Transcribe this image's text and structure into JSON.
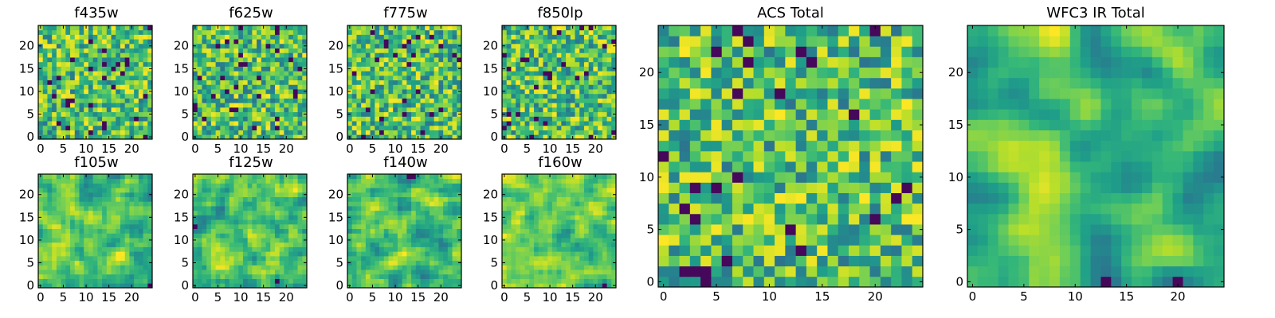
{
  "chart_data": [
    {
      "type": "heatmap",
      "title": "f435w",
      "grid_size": 25,
      "seed": 11,
      "smooth": 0,
      "xticks": [
        0,
        5,
        10,
        15,
        20
      ],
      "yticks": [
        0,
        5,
        10,
        15,
        20
      ],
      "xlim": [
        -0.5,
        24.5
      ],
      "ylim": [
        -0.5,
        24.5
      ],
      "colormap": "viridis"
    },
    {
      "type": "heatmap",
      "title": "f625w",
      "grid_size": 25,
      "seed": 23,
      "smooth": 0,
      "xticks": [
        0,
        5,
        10,
        15,
        20
      ],
      "yticks": [
        0,
        5,
        10,
        15,
        20
      ],
      "xlim": [
        -0.5,
        24.5
      ],
      "ylim": [
        -0.5,
        24.5
      ],
      "colormap": "viridis"
    },
    {
      "type": "heatmap",
      "title": "f775w",
      "grid_size": 25,
      "seed": 37,
      "smooth": 0,
      "xticks": [
        0,
        5,
        10,
        15,
        20
      ],
      "yticks": [
        0,
        5,
        10,
        15,
        20
      ],
      "xlim": [
        -0.5,
        24.5
      ],
      "ylim": [
        -0.5,
        24.5
      ],
      "colormap": "viridis"
    },
    {
      "type": "heatmap",
      "title": "f850lp",
      "grid_size": 25,
      "seed": 41,
      "smooth": 0,
      "xticks": [
        0,
        5,
        10,
        15,
        20
      ],
      "yticks": [
        0,
        5,
        10,
        15,
        20
      ],
      "xlim": [
        -0.5,
        24.5
      ],
      "ylim": [
        -0.5,
        24.5
      ],
      "colormap": "viridis"
    },
    {
      "type": "heatmap",
      "title": "f105w",
      "grid_size": 25,
      "seed": 53,
      "smooth": 1,
      "xticks": [
        0,
        5,
        10,
        15,
        20
      ],
      "yticks": [
        0,
        5,
        10,
        15,
        20
      ],
      "xlim": [
        -0.5,
        24.5
      ],
      "ylim": [
        -0.5,
        24.5
      ],
      "colormap": "viridis"
    },
    {
      "type": "heatmap",
      "title": "f125w",
      "grid_size": 25,
      "seed": 67,
      "smooth": 1,
      "xticks": [
        0,
        5,
        10,
        15,
        20
      ],
      "yticks": [
        0,
        5,
        10,
        15,
        20
      ],
      "xlim": [
        -0.5,
        24.5
      ],
      "ylim": [
        -0.5,
        24.5
      ],
      "colormap": "viridis"
    },
    {
      "type": "heatmap",
      "title": "f140w",
      "grid_size": 25,
      "seed": 71,
      "smooth": 1,
      "xticks": [
        0,
        5,
        10,
        15,
        20
      ],
      "yticks": [
        0,
        5,
        10,
        15,
        20
      ],
      "xlim": [
        -0.5,
        24.5
      ],
      "ylim": [
        -0.5,
        24.5
      ],
      "colormap": "viridis"
    },
    {
      "type": "heatmap",
      "title": "f160w",
      "grid_size": 25,
      "seed": 83,
      "smooth": 1,
      "xticks": [
        0,
        5,
        10,
        15,
        20
      ],
      "yticks": [
        0,
        5,
        10,
        15,
        20
      ],
      "xlim": [
        -0.5,
        24.5
      ],
      "ylim": [
        -0.5,
        24.5
      ],
      "colormap": "viridis"
    },
    {
      "type": "heatmap",
      "title": "ACS Total",
      "grid_size": 25,
      "seed": 97,
      "smooth": 0,
      "xticks": [
        0,
        5,
        10,
        15,
        20
      ],
      "yticks": [
        0,
        5,
        10,
        15,
        20
      ],
      "xlim": [
        -0.5,
        24.5
      ],
      "ylim": [
        -0.5,
        24.5
      ],
      "colormap": "viridis"
    },
    {
      "type": "heatmap",
      "title": "WFC3 IR Total",
      "grid_size": 25,
      "seed": 101,
      "smooth": 2,
      "xticks": [
        0,
        5,
        10,
        15,
        20
      ],
      "yticks": [
        0,
        5,
        10,
        15,
        20
      ],
      "xlim": [
        -0.5,
        24.5
      ],
      "ylim": [
        -0.5,
        24.5
      ],
      "colormap": "viridis"
    }
  ]
}
